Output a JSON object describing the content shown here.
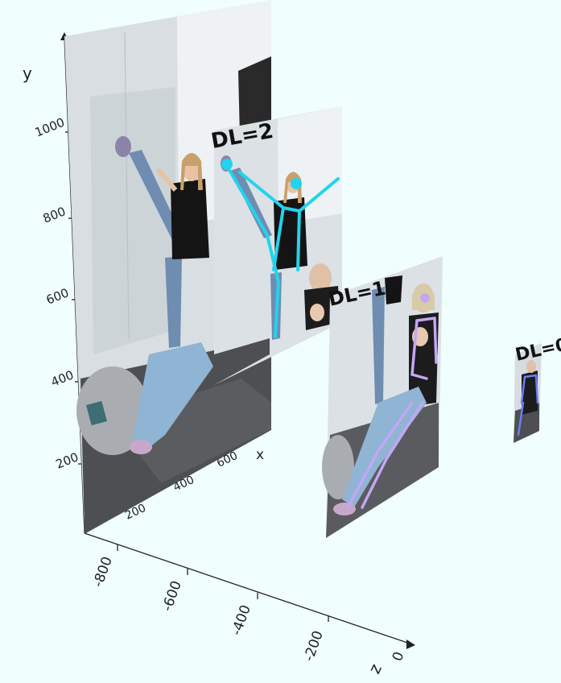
{
  "axes": {
    "y_label": "y",
    "x_label": "x",
    "z_label": "z",
    "y_ticks": [
      "200",
      "400",
      "600",
      "800",
      "1000"
    ],
    "x_ticks": [
      "200",
      "400",
      "600"
    ],
    "z_ticks": [
      "-800",
      "-600",
      "-400",
      "-200",
      "0"
    ]
  },
  "layers": [
    {
      "label": "DL=2",
      "skeleton_color": "#22d3ee"
    },
    {
      "label": "DL=1",
      "skeleton_color": "#c4a6f5"
    },
    {
      "label": "DL=0",
      "skeleton_color": "#6d7ef5"
    }
  ],
  "colors": {
    "background": "#f0fffe",
    "wall": "#d9dfe3",
    "bedding": "#4e4f52",
    "jeans": "#6f8db0",
    "shirt": "#141414",
    "skin": "#e8c2a4"
  }
}
